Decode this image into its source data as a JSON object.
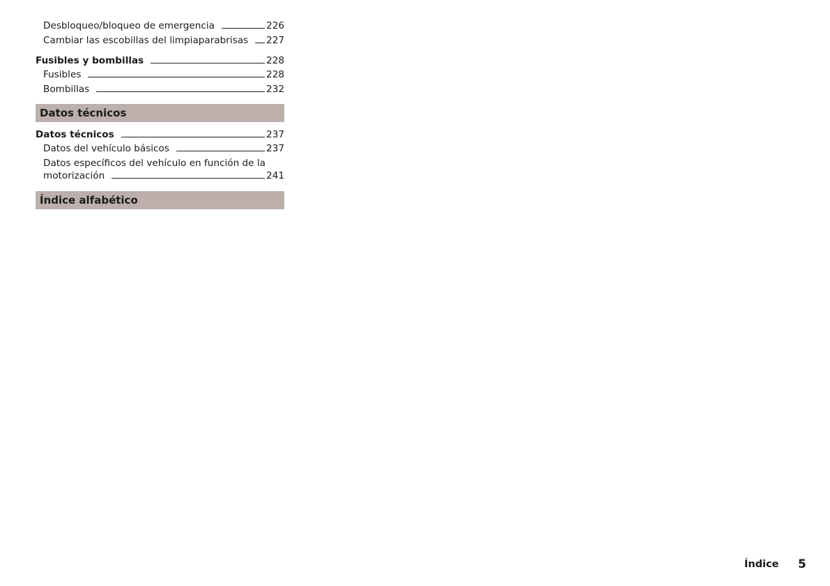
{
  "toc": {
    "rows": [
      {
        "label": "Desbloqueo/bloqueo de emergencia",
        "page": "226"
      },
      {
        "label": "Cambiar las escobillas del limpiaparabrisas",
        "page": "227"
      },
      {
        "label": "Fusibles y bombillas",
        "page": "228"
      },
      {
        "label": "Fusibles",
        "page": "228"
      },
      {
        "label": "Bombillas",
        "page": "232"
      },
      {
        "label": "Datos técnicos",
        "page": "237"
      },
      {
        "label": "Datos del vehículo básicos",
        "page": "237"
      },
      {
        "label_line1": "Datos específicos del vehículo en función de la",
        "label_line2": "motorización",
        "page": "241"
      }
    ],
    "sections": [
      "Datos técnicos",
      "Índice alfabético"
    ]
  },
  "footer": {
    "label": "Índice",
    "page": "5"
  },
  "colors": {
    "section_band": "#bcafac"
  }
}
